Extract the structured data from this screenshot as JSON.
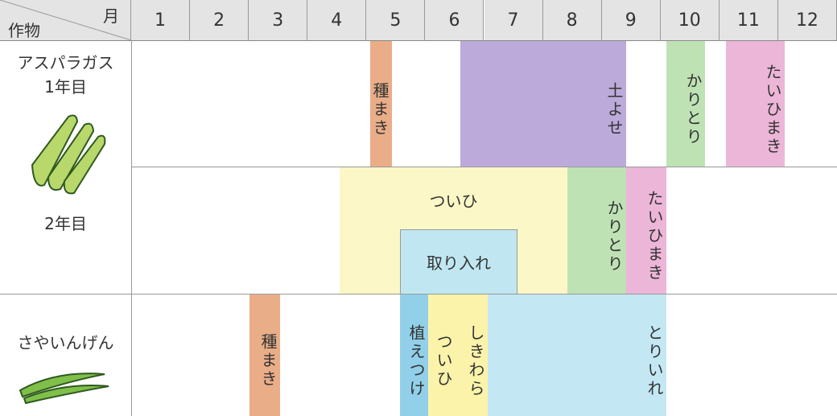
{
  "header": {
    "month_label": "月",
    "crop_label": "作物",
    "months": [
      1,
      2,
      3,
      4,
      5,
      6,
      7,
      8,
      9,
      10,
      11,
      12
    ]
  },
  "crops": [
    {
      "name": "アスパラガス",
      "stages": [
        {
          "label": "1年目",
          "activities": [
            "種まき",
            "土よせ",
            "かりとり",
            "たいひまき"
          ]
        },
        {
          "label": "2年目",
          "activities": [
            "ついひ",
            "取り入れ",
            "かりとり",
            "たいひまき"
          ]
        }
      ]
    },
    {
      "name": "さやいんげん",
      "activities": [
        "種まき",
        "植えつけ",
        "ついひ",
        "しきわら",
        "とりいれ"
      ]
    }
  ]
}
